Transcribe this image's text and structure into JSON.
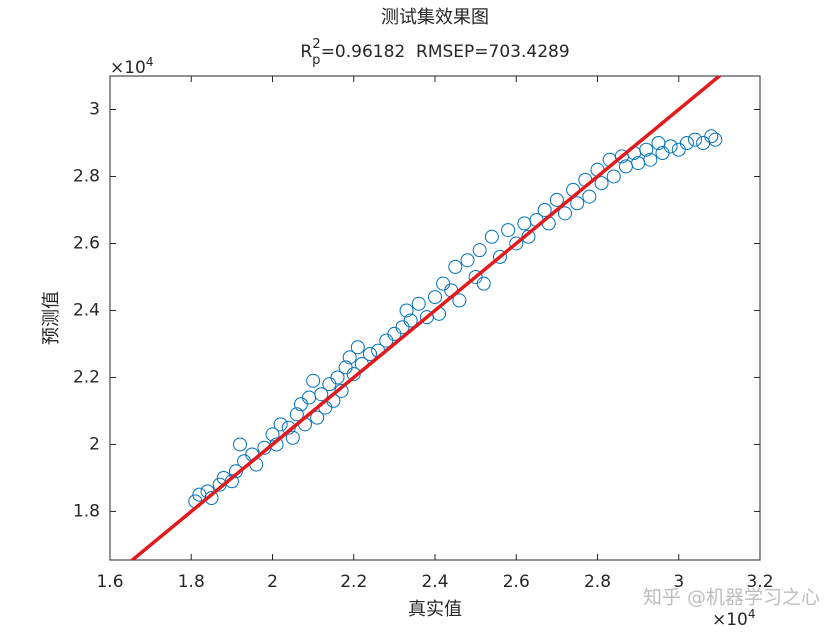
{
  "chart_data": {
    "type": "scatter",
    "title": "测试集效果图",
    "subtitle": {
      "r": "R",
      "sub": "p",
      "sup": "2",
      "rest": "=0.96182  RMSEP=703.4289"
    },
    "x_label": "真实值",
    "y_label": "预测值",
    "x_exponent": {
      "base": "×10",
      "power": "4"
    },
    "y_exponent": {
      "base": "×10",
      "power": "4"
    },
    "watermark": "知乎 @机器学习之心",
    "xlim": [
      1.6,
      3.2
    ],
    "ylim": [
      1.655,
      3.1
    ],
    "xticks": [
      1.6,
      1.8,
      2,
      2.2,
      2.4,
      2.6,
      2.8,
      3,
      3.2
    ],
    "yticks": [
      1.8,
      2,
      2.2,
      2.4,
      2.6,
      2.8,
      3
    ],
    "series": [
      {
        "color": "#0072bd",
        "x": [
          1.81,
          1.82,
          1.84,
          1.85,
          1.87,
          1.88,
          1.9,
          1.91,
          1.92,
          1.93,
          1.95,
          1.96,
          1.98,
          2.0,
          2.01,
          2.02,
          2.04,
          2.05,
          2.06,
          2.07,
          2.08,
          2.09,
          2.1,
          2.11,
          2.12,
          2.13,
          2.14,
          2.15,
          2.16,
          2.17,
          2.18,
          2.19,
          2.2,
          2.21,
          2.22,
          2.24,
          2.26,
          2.28,
          2.3,
          2.32,
          2.33,
          2.34,
          2.36,
          2.38,
          2.4,
          2.41,
          2.42,
          2.44,
          2.45,
          2.46,
          2.48,
          2.5,
          2.51,
          2.52,
          2.54,
          2.56,
          2.58,
          2.6,
          2.62,
          2.63,
          2.65,
          2.67,
          2.68,
          2.7,
          2.72,
          2.74,
          2.75,
          2.77,
          2.78,
          2.8,
          2.81,
          2.83,
          2.84,
          2.86,
          2.87,
          2.89,
          2.9,
          2.92,
          2.93,
          2.95,
          2.96,
          2.98,
          3.0,
          3.02,
          3.04,
          3.06,
          3.08,
          3.09
        ],
        "values": [
          1.83,
          1.85,
          1.86,
          1.84,
          1.88,
          1.9,
          1.89,
          1.92,
          2.0,
          1.95,
          1.97,
          1.94,
          1.99,
          2.03,
          2.0,
          2.06,
          2.05,
          2.02,
          2.09,
          2.12,
          2.06,
          2.14,
          2.19,
          2.08,
          2.15,
          2.11,
          2.18,
          2.13,
          2.2,
          2.16,
          2.23,
          2.26,
          2.21,
          2.29,
          2.24,
          2.27,
          2.28,
          2.31,
          2.33,
          2.35,
          2.4,
          2.37,
          2.42,
          2.38,
          2.44,
          2.39,
          2.48,
          2.46,
          2.53,
          2.43,
          2.55,
          2.5,
          2.58,
          2.48,
          2.62,
          2.56,
          2.64,
          2.6,
          2.66,
          2.62,
          2.67,
          2.7,
          2.66,
          2.73,
          2.69,
          2.76,
          2.72,
          2.79,
          2.74,
          2.82,
          2.78,
          2.85,
          2.8,
          2.86,
          2.83,
          2.87,
          2.84,
          2.88,
          2.85,
          2.9,
          2.87,
          2.89,
          2.88,
          2.9,
          2.91,
          2.9,
          2.92,
          2.91
        ]
      }
    ],
    "reference_line": {
      "x": [
        1.6,
        3.2
      ],
      "y": [
        1.6,
        3.2
      ],
      "color": "#e31a1c"
    }
  }
}
